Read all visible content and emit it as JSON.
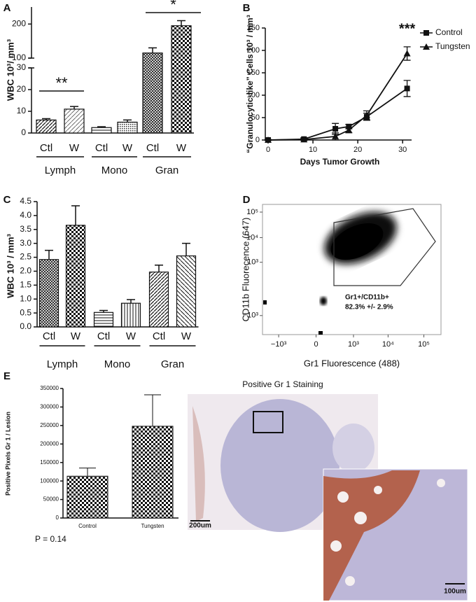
{
  "chart_data": [
    {
      "type": "grouped_bar",
      "panel": "A",
      "y_label": "WBC 10³/ mm³",
      "groups": [
        "Lymph",
        "Mono",
        "Gran"
      ],
      "categories": [
        "Ctl",
        "W"
      ],
      "values": [
        [
          6,
          11
        ],
        [
          2.5,
          5
        ],
        [
          115,
          195
        ]
      ],
      "errors": [
        [
          0.6,
          1.2
        ],
        [
          0.4,
          1
        ],
        [
          15,
          15
        ]
      ],
      "patterns": [
        [
          "diagonal",
          "diagonal-light"
        ],
        [
          "horizontal",
          "dense"
        ],
        [
          "crosshatch",
          "checker"
        ]
      ],
      "ylim": [
        0,
        250
      ],
      "axis_break": [
        30,
        100
      ],
      "yticks": [
        0,
        10,
        20,
        30,
        100,
        200
      ],
      "annotations": [
        {
          "text": "**",
          "group": 0
        },
        {
          "text": "*",
          "group": 2
        }
      ]
    },
    {
      "type": "line",
      "panel": "B",
      "x_label": "Days Tumor Growth",
      "y_label": "“Granulocytic-like” Cells 10³ / mm³",
      "x": [
        0,
        8,
        15,
        18,
        22,
        31
      ],
      "series": [
        {
          "name": "Control",
          "color": "#111111",
          "marker": "square",
          "values": [
            0,
            2,
            25,
            30,
            52,
            115
          ],
          "errors": [
            1,
            3,
            12,
            5,
            8,
            18
          ]
        },
        {
          "name": "Tungsten",
          "color": "#111111",
          "marker": "triangle",
          "values": [
            0,
            1,
            8,
            22,
            55,
            193
          ],
          "errors": [
            1,
            2,
            8,
            6,
            10,
            15
          ]
        }
      ],
      "xlim": [
        0,
        32
      ],
      "xticks": [
        0,
        10,
        20,
        30
      ],
      "ylim": [
        0,
        250
      ],
      "yticks": [
        0,
        50,
        100,
        150,
        200,
        250
      ],
      "legend": "top-right",
      "annotation": "***"
    },
    {
      "type": "grouped_bar",
      "panel": "C",
      "y_label": "WBC 10³ / mm³",
      "groups": [
        "Lymph",
        "Mono",
        "Gran"
      ],
      "categories": [
        "Ctl",
        "W"
      ],
      "values": [
        [
          2.42,
          3.65
        ],
        [
          0.52,
          0.85
        ],
        [
          1.97,
          2.55
        ]
      ],
      "errors": [
        [
          0.33,
          0.7
        ],
        [
          0.07,
          0.13
        ],
        [
          0.25,
          0.45
        ]
      ],
      "patterns": [
        [
          "crosshatch",
          "checker"
        ],
        [
          "horizontal",
          "vertical"
        ],
        [
          "diagonal",
          "diagonal-reverse"
        ]
      ],
      "ylim": [
        0,
        4.5
      ],
      "yticks": [
        {
          "value": 0,
          "label": "0.0"
        },
        0.5,
        {
          "value": 1,
          "label": "1.0"
        },
        1.5,
        {
          "value": 2,
          "label": "2.0"
        },
        2.5,
        {
          "value": 3,
          "label": "3.0"
        },
        3.5,
        {
          "value": 4,
          "label": "4.0"
        },
        4.5
      ]
    },
    {
      "type": "flow_cytometry",
      "panel": "D",
      "x_label": "Gr1 Fluorescence (488)",
      "y_label": "CD11b Fluorecence  (647)",
      "scale": "biexponential",
      "xlim": [
        -3000,
        300000
      ],
      "ylim": [
        -6000,
        200000
      ],
      "xticks": [
        {
          "value": -1000,
          "label": "−10³"
        },
        0,
        {
          "value": 1000,
          "label": "10³"
        },
        {
          "value": 10000,
          "label": "10⁴"
        },
        {
          "value": 100000,
          "label": "10⁵"
        }
      ],
      "yticks": [
        {
          "value": -1000,
          "label": "−10³"
        },
        {
          "value": 1000,
          "label": "10³"
        },
        {
          "value": 10000,
          "label": "10⁴"
        },
        {
          "value": 100000,
          "label": "10⁵"
        }
      ],
      "gate_label": "Gr1+/CD11b+",
      "gate_value": "82.3%  +/-  2.9%"
    },
    {
      "type": "bar",
      "panel": "E",
      "y_label": "Positive Pixels Gr 1 / Lesion",
      "categories": [
        "Control",
        "Tungsten"
      ],
      "values": [
        113000,
        248000
      ],
      "errors": [
        22000,
        85000
      ],
      "pattern": "checker",
      "ylim": [
        0,
        350000
      ],
      "yticks": [
        0,
        50000,
        100000,
        150000,
        200000,
        250000,
        300000,
        350000
      ],
      "annotation": "P = 0.14"
    }
  ],
  "image_panel": {
    "title": "Positive Gr 1 Staining",
    "scale_bars": [
      "200um",
      "100um"
    ]
  }
}
